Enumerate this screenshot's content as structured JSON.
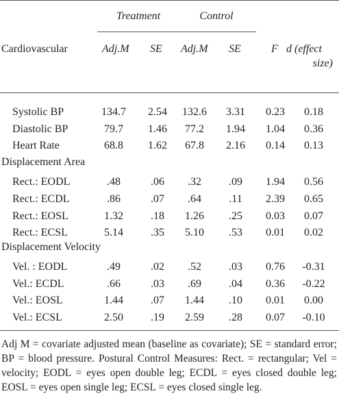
{
  "table": {
    "group_headers": [
      "Treatment",
      "Control"
    ],
    "row_header": "Cardiovascular",
    "columns": [
      "Adj.M",
      "SE",
      "Adj.M",
      "SE",
      "F",
      "d (effect",
      "size)"
    ],
    "sections": [
      {
        "title": "",
        "rows": [
          {
            "label": "Systolic BP",
            "values": [
              "134.7",
              "2.54",
              "132.6",
              "3.31",
              "0.23",
              "0.18"
            ]
          },
          {
            "label": "Diastolic BP",
            "values": [
              "79.7",
              "1.46",
              "77.2",
              "1.94",
              "1.04",
              "0.36"
            ]
          },
          {
            "label": "Heart Rate",
            "values": [
              "68.8",
              "1.62",
              "67.8",
              "2.16",
              "0.14",
              "0.13"
            ]
          }
        ]
      },
      {
        "title": "Displacement Area",
        "rows": [
          {
            "label": "Rect.: EODL",
            "values": [
              ".48",
              ".06",
              ".32",
              ".09",
              "1.94",
              "0.56"
            ]
          },
          {
            "label": "Rect.: ECDL",
            "values": [
              ".86",
              ".07",
              ".64",
              ".11",
              "2.39",
              "0.65"
            ]
          },
          {
            "label": "Rect.: EOSL",
            "values": [
              "1.32",
              ".18",
              "1.26",
              ".25",
              "0.03",
              "0.07"
            ]
          },
          {
            "label": "Rect.: ECSL",
            "values": [
              "5.14",
              ".35",
              "5.10",
              ".53",
              "0.01",
              "0.02"
            ]
          }
        ]
      },
      {
        "title": "Displacement Velocity",
        "rows": [
          {
            "label": "Vel. : EODL",
            "values": [
              ".49",
              ".02",
              ".52",
              ".03",
              "0.76",
              "-0.31"
            ]
          },
          {
            "label": "Vel.: ECDL",
            "values": [
              ".66",
              ".03",
              ".69",
              ".04",
              "0.36",
              "-0.22"
            ]
          },
          {
            "label": "Vel.: EOSL",
            "values": [
              "1.44",
              ".07",
              "1.44",
              ".10",
              "0.01",
              "0.00"
            ]
          },
          {
            "label": "Vel.: ECSL",
            "values": [
              "2.50",
              ".19",
              "2.59",
              ".28",
              "0.07",
              "-0.10"
            ]
          }
        ]
      }
    ]
  },
  "footnote": "Adj M = covariate adjusted mean (baseline as covariate); SE = standard error; BP = blood pressure. Postural Control Measures: Rect. = rectangular; Vel = velocity; EODL = eyes open double leg; ECDL = eyes closed double leg; EOSL = eyes open single leg; ECSL = eyes closed single leg."
}
